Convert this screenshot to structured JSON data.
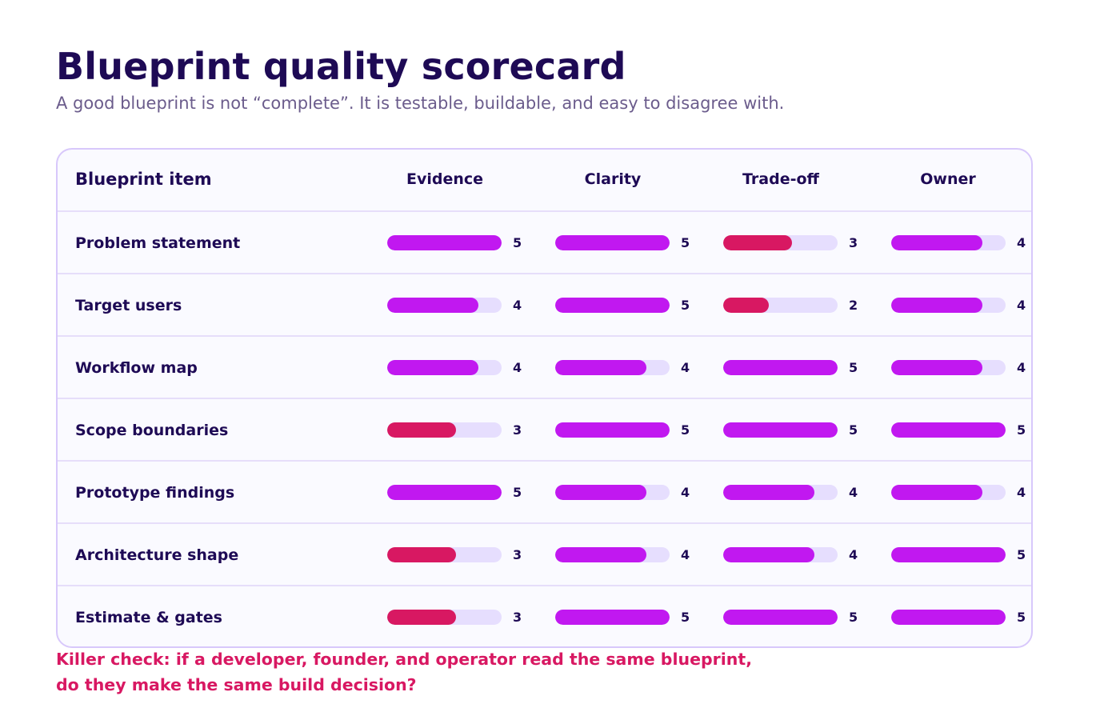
{
  "title": "Blueprint quality scorecard",
  "subtitle": "A good blueprint is not “complete”. It is testable, buildable, and easy to disagree with.",
  "table": {
    "item_header": "Blueprint item",
    "columns": [
      "Evidence",
      "Clarity",
      "Trade-off",
      "Owner"
    ],
    "max_score": 5,
    "low_threshold": 3,
    "colors": {
      "good": "#c118f0",
      "low": "#d81862",
      "track": "#e6defe"
    },
    "rows": [
      {
        "item": "Problem statement",
        "scores": [
          5,
          5,
          3,
          4
        ]
      },
      {
        "item": "Target users",
        "scores": [
          4,
          5,
          2,
          4
        ]
      },
      {
        "item": "Workflow map",
        "scores": [
          4,
          4,
          5,
          4
        ]
      },
      {
        "item": "Scope boundaries",
        "scores": [
          3,
          5,
          5,
          5
        ]
      },
      {
        "item": "Prototype findings",
        "scores": [
          5,
          4,
          4,
          4
        ]
      },
      {
        "item": "Architecture shape",
        "scores": [
          3,
          4,
          4,
          5
        ]
      },
      {
        "item": "Estimate & gates",
        "scores": [
          3,
          5,
          5,
          5
        ]
      }
    ]
  },
  "note": {
    "line1": "Killer check: if a developer, founder, and operator read the same blueprint,",
    "line2": "do they make the same build decision?"
  }
}
